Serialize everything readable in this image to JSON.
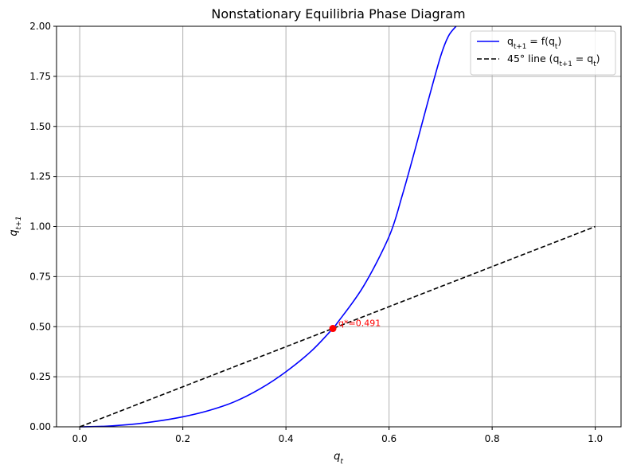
{
  "chart_data": {
    "type": "line",
    "title": "Nonstationary Equilibria Phase Diagram",
    "xlabel": "q_t",
    "ylabel": "q_{t+1}",
    "xlim": [
      -0.045,
      1.05
    ],
    "ylim": [
      0,
      2.0
    ],
    "x_ticks": [
      0.0,
      0.2,
      0.4,
      0.6,
      0.8,
      1.0
    ],
    "x_tick_labels": [
      "0.0",
      "0.2",
      "0.4",
      "0.6",
      "0.8",
      "1.0"
    ],
    "y_ticks": [
      0.0,
      0.25,
      0.5,
      0.75,
      1.0,
      1.25,
      1.5,
      1.75,
      2.0
    ],
    "y_tick_labels": [
      "0.00",
      "0.25",
      "0.50",
      "0.75",
      "1.00",
      "1.25",
      "1.50",
      "1.75",
      "2.00"
    ],
    "grid": true,
    "legend_position": "top-right",
    "series": [
      {
        "name": "q_{t+1} = f(q_t)",
        "color": "#0000ff",
        "style": "solid",
        "x": [
          0.0,
          0.05,
          0.1,
          0.15,
          0.2,
          0.25,
          0.3,
          0.35,
          0.4,
          0.45,
          0.491,
          0.5,
          0.55,
          0.6,
          0.625,
          0.65,
          0.675,
          0.7,
          0.715,
          0.73
        ],
        "y": [
          0.0,
          0.003,
          0.012,
          0.028,
          0.05,
          0.081,
          0.125,
          0.19,
          0.275,
          0.38,
          0.491,
          0.52,
          0.7,
          0.95,
          1.15,
          1.38,
          1.62,
          1.85,
          1.95,
          2.0
        ]
      },
      {
        "name": "45° line (q_{t+1} = q_t)",
        "color": "#000000",
        "style": "dashed",
        "x": [
          0.0,
          1.0
        ],
        "y": [
          0.0,
          1.0
        ]
      }
    ],
    "points": [
      {
        "x": 0.491,
        "y": 0.491,
        "color": "#ff0000",
        "label": "q*=0.491"
      }
    ]
  }
}
